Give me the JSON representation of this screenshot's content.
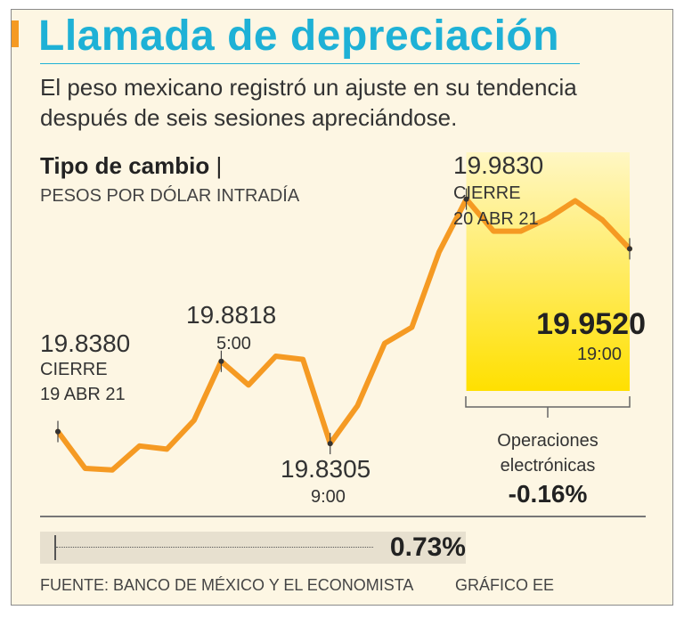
{
  "header": {
    "title": "Llamada de depreciación",
    "subtitle": "El peso mexicano registró un ajuste en su tendencia después de seis sesiones apreciándose."
  },
  "chart_header": {
    "title_bold": "Tipo de cambio",
    "title_sep": "|",
    "unit": "PESOS POR DÓLAR INTRADÍA"
  },
  "annotations": {
    "start_value": "19.8380",
    "start_label": "CIERRE",
    "start_date": "19 ABR 21",
    "peak1_value": "19.8818",
    "peak1_time": "5:00",
    "low_value": "19.8305",
    "low_time": "9:00",
    "close_value": "19.9830",
    "close_label": "CIERRE",
    "close_date": "20 ABR 21",
    "last_value": "19.9520",
    "last_time": "19:00",
    "ops_line1": "Operaciones",
    "ops_line2": "electrónicas",
    "ops_change": "-0.16%"
  },
  "variation": {
    "value": "0.73%"
  },
  "footer": {
    "source": "FUENTE: BANCO DE MÉXICO Y EL ECONOMISTA",
    "credit": "GRÁFICO EE"
  },
  "colors": {
    "line": "#f59a23",
    "title": "#1eb1d6",
    "highlight_top": "#fff4a0",
    "highlight_bottom": "#ffe000"
  },
  "chart_data": {
    "type": "line",
    "title": "Tipo de cambio",
    "ylabel": "PESOS POR DÓLAR INTRADÍA",
    "ylim": [
      19.79,
      19.99
    ],
    "values": [
      19.838,
      19.815,
      19.814,
      19.829,
      19.827,
      19.845,
      19.8818,
      19.867,
      19.885,
      19.883,
      19.8305,
      19.854,
      19.893,
      19.903,
      19.95,
      19.983,
      19.963,
      19.963,
      19.971,
      19.982,
      19.97,
      19.952
    ],
    "highlight_start_index": 15,
    "highlight_label": "Operaciones electrónicas",
    "highlight_change": "-0.16%"
  }
}
